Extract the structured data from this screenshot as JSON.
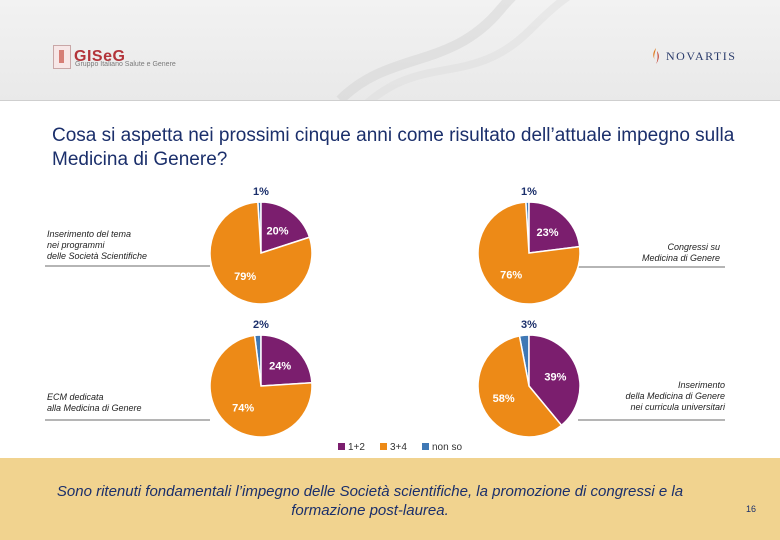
{
  "header": {
    "logo_left": "GISeG",
    "logo_left_sub": "Gruppo Italiano Salute e Genere",
    "logo_right": "NOVARTIS"
  },
  "title": "Cosa si aspetta nei prossimi cinque anni come risultato dell’attuale impegno sulla Medicina di Genere?",
  "colors": {
    "purple": "#7b1e6e",
    "orange": "#ed8a17",
    "blue": "#3f78b5"
  },
  "chart_data": {
    "type": "pie",
    "legend": [
      {
        "key": "a",
        "label": "1+2",
        "color": "#7b1e6e"
      },
      {
        "key": "b",
        "label": "3+4",
        "color": "#ed8a17"
      },
      {
        "key": "c",
        "label": "non so",
        "color": "#3f78b5"
      }
    ],
    "legend_position": "bottom-center",
    "pies": [
      {
        "category": "Inserimento del tema nei programmi delle Società Scientifiche",
        "values": {
          "1+2": 20,
          "3+4": 79,
          "non so": 1
        },
        "labels": {
          "1+2": "20%",
          "3+4": "79%",
          "non so": "1%"
        }
      },
      {
        "category": "Congressi su Medicina di Genere",
        "values": {
          "1+2": 23,
          "3+4": 76,
          "non so": 1
        },
        "labels": {
          "1+2": "23%",
          "3+4": "76%",
          "non so": "1%"
        }
      },
      {
        "category": "ECM dedicata alla Medicina di Genere",
        "values": {
          "1+2": 24,
          "3+4": 74,
          "non so": 2
        },
        "labels": {
          "1+2": "24%",
          "3+4": "74%",
          "non so": "2%"
        }
      },
      {
        "category": "Inserimento della Medicina di Genere nei curricula universitari",
        "values": {
          "1+2": 39,
          "3+4": 58,
          "non so": 3
        },
        "labels": {
          "1+2": "39%",
          "3+4": "58%",
          "non so": "3%"
        }
      }
    ]
  },
  "labels": {
    "q1": [
      "Inserimento del tema",
      "nei programmi",
      "delle Società Scientifiche"
    ],
    "q2": [
      "Congressi su",
      "Medicina di Genere"
    ],
    "q3": [
      "ECM dedicata",
      "alla Medicina di Genere"
    ],
    "q4": [
      "Inserimento",
      "della Medicina di Genere",
      "nei curricula universitari"
    ]
  },
  "footer": {
    "text": "Sono ritenuti fondamentali l’impegno delle Società scientifiche, la promozione di congressi e la formazione post-laurea.",
    "page_number": "16"
  }
}
